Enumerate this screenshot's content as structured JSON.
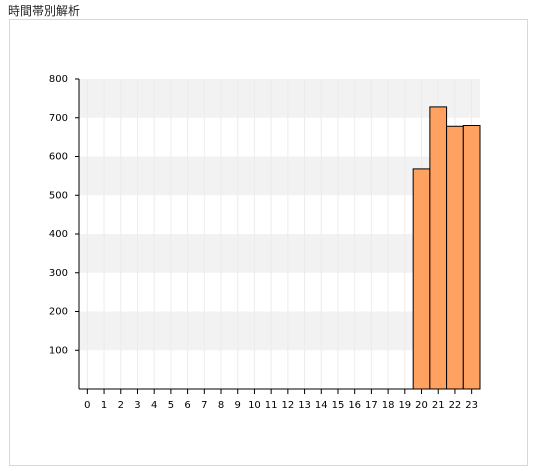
{
  "header": {
    "title": "時間帯別解析"
  },
  "chart_data": {
    "type": "bar",
    "categories": [
      "0",
      "1",
      "2",
      "3",
      "4",
      "5",
      "6",
      "7",
      "8",
      "9",
      "10",
      "11",
      "12",
      "13",
      "14",
      "15",
      "16",
      "17",
      "18",
      "19",
      "20",
      "21",
      "22",
      "23"
    ],
    "values": [
      0,
      0,
      0,
      0,
      0,
      0,
      0,
      0,
      0,
      0,
      0,
      0,
      0,
      0,
      0,
      0,
      0,
      0,
      0,
      0,
      568,
      728,
      678,
      680
    ],
    "color": "#ffa261",
    "ylim": [
      0,
      800
    ],
    "yticks": [
      100,
      200,
      300,
      400,
      500,
      600,
      700,
      800
    ],
    "grid": true
  }
}
